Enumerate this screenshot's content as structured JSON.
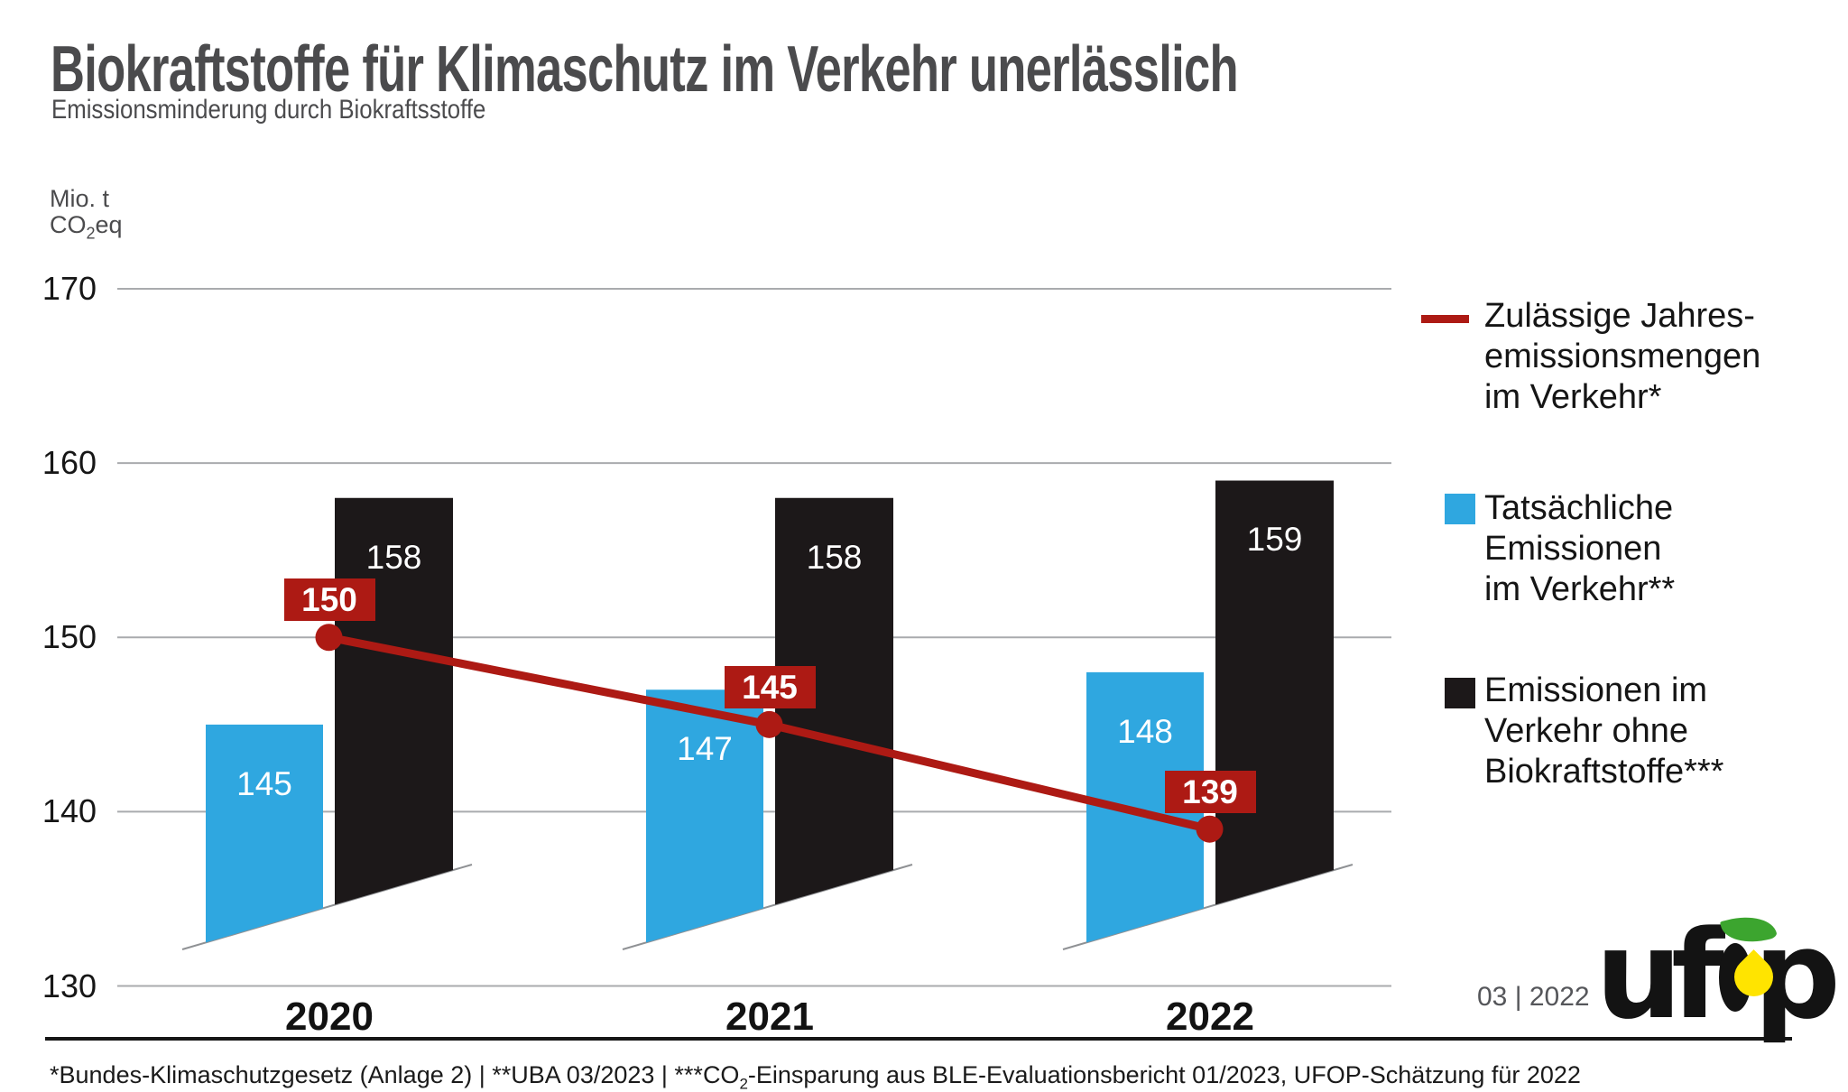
{
  "header": {
    "title": "Biokraftstoffe für Klimaschutz im Verkehr unerlässlich",
    "subtitle": "Emissionsminderung durch Biokraftsstoffe"
  },
  "y_axis": {
    "unit_line1": "Mio. t",
    "unit_line2_pre": "CO",
    "unit_line2_sub": "2",
    "unit_line2_post": "eq",
    "ticks": [
      "170",
      "160",
      "150",
      "140",
      "130"
    ]
  },
  "chart_data": {
    "type": "bar+line",
    "title": "Biokraftstoffe für Klimaschutz im Verkehr unerlässlich",
    "subtitle": "Emissionsminderung durch Biokraftsstoffe",
    "ylabel": "Mio. t CO₂eq",
    "ylim": [
      130,
      170
    ],
    "yticks": [
      170,
      160,
      150,
      140,
      130
    ],
    "grid": true,
    "legend_position": "right",
    "categories": [
      "2020",
      "2021",
      "2022"
    ],
    "series": [
      {
        "name": "Zulässige Jahresemissionsmengen im Verkehr*",
        "type": "line",
        "color": "#ad1a14",
        "values": [
          150,
          145,
          139
        ]
      },
      {
        "name": "Tatsächliche Emissionen im Verkehr**",
        "type": "bar",
        "color": "#2fa7e0",
        "values": [
          145,
          147,
          148
        ]
      },
      {
        "name": "Emissionen im Verkehr ohne Biokraftstoffe***",
        "type": "bar",
        "color": "#1c1819",
        "values": [
          158,
          158,
          159
        ]
      }
    ]
  },
  "legend": {
    "items": [
      {
        "swatch": "red-line",
        "lines": [
          "Zulässige Jahres-",
          "emissionsmengen",
          "im Verkehr*"
        ]
      },
      {
        "swatch": "blue-box",
        "lines": [
          "Tatsächliche",
          "Emissionen",
          "im Verkehr**"
        ]
      },
      {
        "swatch": "black-box",
        "lines": [
          "Emissionen im",
          "Verkehr ohne",
          "Biokraftstoffe***"
        ]
      }
    ]
  },
  "footer": {
    "footnote_pre": "*Bundes-Klimaschutzgesetz (Anlage 2) | **UBA 03/2023 | ***CO",
    "footnote_sub": "2",
    "footnote_post": "-Einsparung aus BLE-Evaluationsbericht 01/2023, UFOP-Schätzung für 2022",
    "issue": "03 | 2022",
    "logo_left": "uf",
    "logo_right": "p"
  },
  "colors": {
    "line_red": "#ad1a14",
    "bar_blue": "#2fa7e0",
    "bar_black": "#1c1819",
    "gridline": "#a9abae",
    "baseline": "#8f9194"
  }
}
